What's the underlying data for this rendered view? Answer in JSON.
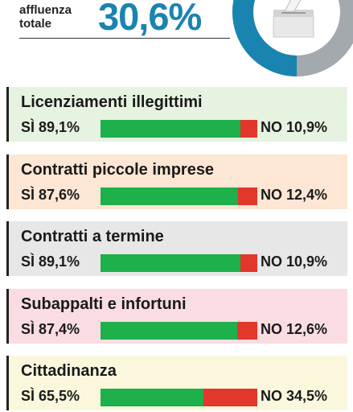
{
  "turnout": {
    "label_line1": "affluenza",
    "label_line2": "totale",
    "value_text": "30,6%",
    "value": 30.6,
    "color_turnout": "#1a84b0",
    "color_rest": "#a3a9ad",
    "icon": "ballot-box-icon"
  },
  "colors": {
    "yes": "#1db04b",
    "no": "#e2372b"
  },
  "chart_data": {
    "type": "bar",
    "stacked": true,
    "orientation": "horizontal",
    "categories": [
      "Licenziamenti illegittimi",
      "Contratti piccole imprese",
      "Contratti a termine",
      "Subappalti e infortuni",
      "Cittadinanza"
    ],
    "series": [
      {
        "name": "SÌ",
        "values": [
          89.1,
          87.6,
          89.1,
          87.4,
          65.5
        ]
      },
      {
        "name": "NO",
        "values": [
          10.9,
          12.4,
          10.9,
          12.6,
          34.5
        ]
      }
    ],
    "xlim": [
      0,
      100
    ]
  },
  "questions": [
    {
      "title": "Licenziamenti illegittimi",
      "yes_text": "SÌ 89,1%",
      "no_text": "NO 10,9%",
      "bg": "#e6f3e0"
    },
    {
      "title": "Contratti piccole imprese",
      "yes_text": "SÌ 87,6%",
      "no_text": "NO 12,4%",
      "bg": "#fde6d3"
    },
    {
      "title": "Contratti a termine",
      "yes_text": "SÌ 89,1%",
      "no_text": "NO 10,9%",
      "bg": "#e7e7e7"
    },
    {
      "title": "Subappalti e infortuni",
      "yes_text": "SÌ 87,4%",
      "no_text": "NO 12,6%",
      "bg": "#f9dde2"
    },
    {
      "title": "Cittadinanza",
      "yes_text": "SÌ 65,5%",
      "no_text": "NO 34,5%",
      "bg": "#fbf7dd"
    }
  ]
}
